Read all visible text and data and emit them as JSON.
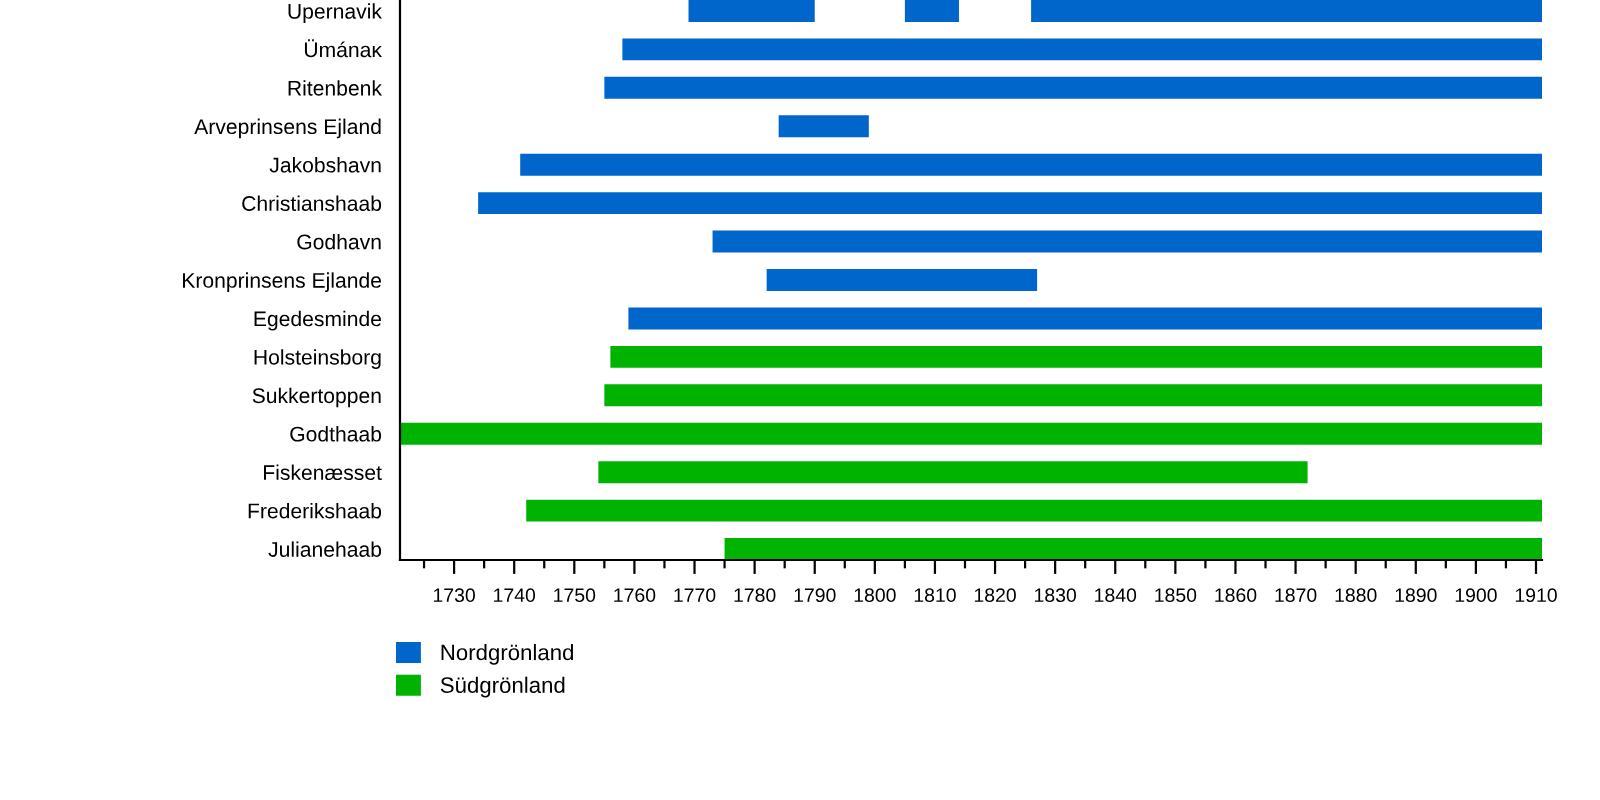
{
  "chart_data": {
    "type": "bar",
    "orientation": "horizontal",
    "categories": [
      "Upernavik",
      "Ümánaĸ",
      "Ritenbenk",
      "Arveprinsens Ejland",
      "Jakobshavn",
      "Christianshaab",
      "Godhavn",
      "Kronprinsens Ejlande",
      "Egedesminde",
      "Holsteinsborg",
      "Sukkertoppen",
      "Godthaab",
      "Fiskenæsset",
      "Frederikshaab",
      "Julianehaab"
    ],
    "series": [
      {
        "name": "Nordgrönland",
        "color": "#0066cc",
        "base": [
          1769,
          1758,
          1755,
          1784,
          1741,
          1734,
          1773,
          1782,
          1759,
          null,
          null,
          null,
          null,
          null,
          null
        ],
        "values": [
          21,
          153,
          156,
          15,
          170,
          177,
          138,
          45,
          152,
          null,
          null,
          null,
          null,
          null,
          null
        ]
      },
      {
        "name": "Südgrönland",
        "color": "#00b300",
        "base": [
          null,
          null,
          null,
          null,
          null,
          null,
          null,
          null,
          null,
          1756,
          1755,
          1721,
          1754,
          1742,
          1775
        ],
        "values": [
          null,
          null,
          null,
          null,
          null,
          null,
          null,
          null,
          null,
          155,
          156,
          190,
          118,
          169,
          136
        ]
      },
      {
        "color": "#0066cc",
        "base": [
          1805,
          null,
          null,
          null,
          null,
          null,
          null,
          null,
          null,
          null,
          null,
          null,
          null,
          null,
          null
        ],
        "values": [
          9,
          null,
          null,
          null,
          null,
          null,
          null,
          null,
          null,
          null,
          null,
          null,
          null,
          null,
          null
        ]
      },
      {
        "color": "#0066cc",
        "base": [
          1826,
          null,
          null,
          null,
          null,
          null,
          null,
          null,
          null,
          null,
          null,
          null,
          null,
          null,
          null
        ],
        "values": [
          85,
          null,
          null,
          null,
          null,
          null,
          null,
          null,
          null,
          null,
          null,
          null,
          null,
          null,
          null
        ]
      }
    ],
    "xlim": [
      1721,
      1911
    ],
    "xticks": [
      {
        "value": 1725,
        "label": null
      },
      1730,
      {
        "value": 1735,
        "label": null
      },
      1740,
      {
        "value": 1745,
        "label": null
      },
      1750,
      {
        "value": 1755,
        "label": null
      },
      1760,
      {
        "value": 1765,
        "label": null
      },
      1770,
      {
        "value": 1775,
        "label": null
      },
      1780,
      {
        "value": 1785,
        "label": null
      },
      1790,
      {
        "value": 1795,
        "label": null
      },
      1800,
      {
        "value": 1805,
        "label": null
      },
      1810,
      {
        "value": 1815,
        "label": null
      },
      1820,
      {
        "value": 1825,
        "label": null
      },
      1830,
      {
        "value": 1835,
        "label": null
      },
      1840,
      {
        "value": 1845,
        "label": null
      },
      1850,
      {
        "value": 1855,
        "label": null
      },
      1860,
      {
        "value": 1865,
        "label": null
      },
      1870,
      {
        "value": 1875,
        "label": null
      },
      1880,
      {
        "value": 1885,
        "label": null
      },
      1890,
      {
        "value": 1895,
        "label": null
      },
      1900,
      {
        "value": 1905,
        "label": null
      },
      1910
    ],
    "legend": "bottom left"
  }
}
